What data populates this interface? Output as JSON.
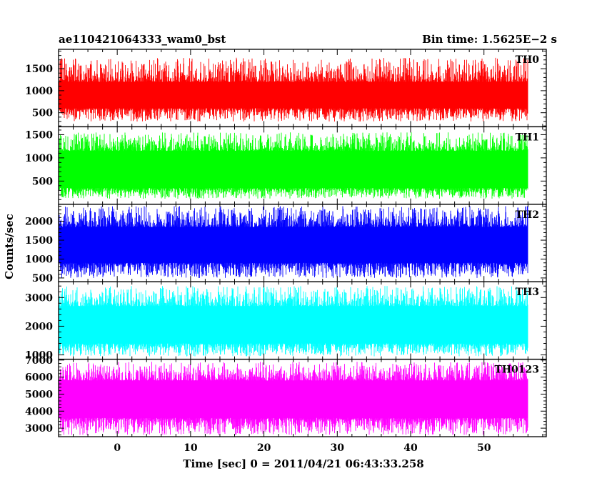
{
  "header": {
    "title": "ae110421064333_wam0_bst",
    "bin_time": "Bin time: 1.5625E−2 s"
  },
  "chart_data": {
    "type": "line",
    "ylabel": "Counts/sec",
    "xlabel": "Time [sec] 0 = 2011/04/21 06:43:33.258",
    "xlim": [
      -8,
      58.5
    ],
    "data_x_range": [
      -7.9,
      56.0
    ],
    "x_ticks": [
      0,
      10,
      20,
      30,
      40,
      50
    ],
    "x_tick_labels": [
      "0",
      "10",
      "20",
      "30",
      "40",
      "50"
    ],
    "x_minor_step": 2,
    "grid": false,
    "panels": [
      {
        "label": "TH0",
        "color": "#ff0000",
        "ylim": [
          180,
          1940
        ],
        "yticks": [
          500,
          1000,
          1500
        ],
        "ytick_labels": [
          "500",
          "1000",
          "1500"
        ],
        "typical_range": [
          600,
          1200
        ],
        "extreme_range": [
          300,
          1750
        ]
      },
      {
        "label": "TH1",
        "color": "#00ff00",
        "ylim": [
          0,
          1670
        ],
        "yticks": [
          500,
          1000,
          1500
        ],
        "ytick_labels": [
          "500",
          "1000",
          "1500"
        ],
        "typical_range": [
          350,
          1150
        ],
        "extreme_range": [
          120,
          1550
        ]
      },
      {
        "label": "TH2",
        "color": "#0000ff",
        "ylim": [
          400,
          2450
        ],
        "yticks": [
          500,
          1000,
          1500,
          2000
        ],
        "ytick_labels": [
          "500",
          "1000",
          "1500",
          "2000"
        ],
        "typical_range": [
          900,
          1850
        ],
        "extreme_range": [
          500,
          2400
        ]
      },
      {
        "label": "TH3",
        "color": "#00ffff",
        "ylim": [
          850,
          3550
        ],
        "yticks": [
          1000,
          2000,
          3000
        ],
        "ytick_labels": [
          "1000",
          "2000",
          "3000"
        ],
        "typical_range": [
          1400,
          2700
        ],
        "extreme_range": [
          950,
          3400
        ]
      },
      {
        "label": "TH0123",
        "color": "#ff00ff",
        "ylim": [
          2500,
          7050
        ],
        "yticks": [
          3000,
          4000,
          5000,
          6000,
          7000
        ],
        "ytick_labels": [
          "3000",
          "4000",
          "5000",
          "6000",
          "7000"
        ],
        "typical_range": [
          3600,
          5800
        ],
        "extreme_range": [
          2600,
          6900
        ]
      }
    ]
  }
}
